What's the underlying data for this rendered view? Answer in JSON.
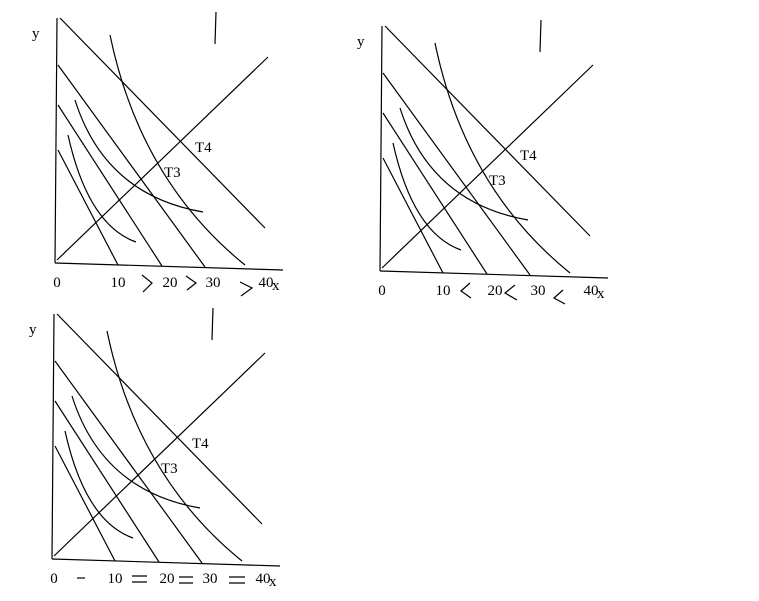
{
  "panels": [
    {
      "y_label": "y",
      "x_label": "x",
      "ticks": [
        "0",
        "10",
        "20",
        "30",
        "40"
      ],
      "curve_labels": [
        "T3",
        "T4"
      ]
    },
    {
      "y_label": "y",
      "x_label": "x",
      "ticks": [
        "0",
        "10",
        "20",
        "30",
        "40"
      ],
      "curve_labels": [
        "T3",
        "T4"
      ]
    },
    {
      "y_label": "y",
      "x_label": "x",
      "ticks": [
        "0",
        "10",
        "20",
        "30",
        "40"
      ],
      "curve_labels": [
        "T3",
        "T4"
      ]
    }
  ]
}
